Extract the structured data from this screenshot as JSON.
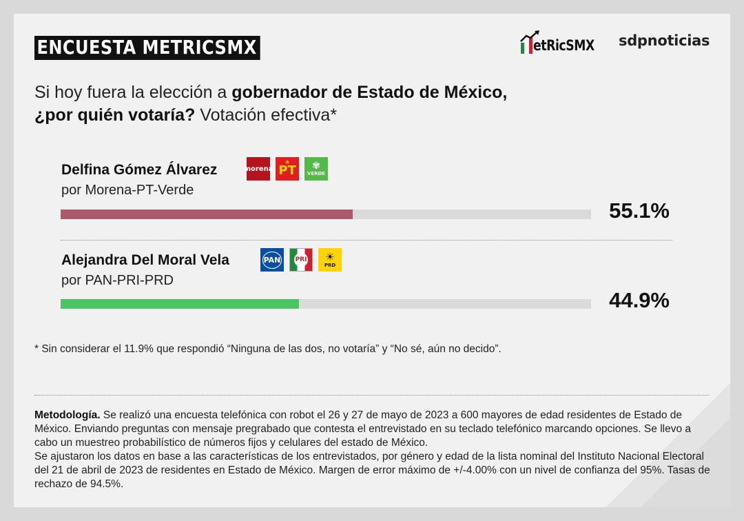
{
  "header": {
    "tag": "ENCUESTA METRICSMX",
    "logo_metrics": "METRICSMX",
    "logo_metrics_display": "etRicSMX",
    "logo_sdp": "sdpnoticias"
  },
  "question": {
    "part1": "Si hoy fuera la elección a ",
    "part1_bold": "gobernador de Estado de México,",
    "part2_bold": "¿por quién votaría?",
    "part2": " Votación efectiva*"
  },
  "chart_data": {
    "type": "bar",
    "orientation": "horizontal",
    "title": "Si hoy fuera la elección a gobernador de Estado de México, ¿por quién votaría? Votación efectiva*",
    "categories": [
      "Delfina Gómez Álvarez",
      "Alejandra Del Moral Vela"
    ],
    "subtitles": [
      "por Morena-PT-Verde",
      "por PAN-PRI-PRD"
    ],
    "values": [
      55.1,
      44.9
    ],
    "value_labels": [
      "55.1%",
      "44.9%"
    ],
    "colors": [
      "#a85b6b",
      "#4cc466"
    ],
    "xlim": [
      0,
      100
    ],
    "grid": false,
    "legend": "none"
  },
  "candidates": [
    {
      "name": "Delfina Gómez Álvarez",
      "party": "por Morena-PT-Verde",
      "pct": "55.1%",
      "logos": [
        {
          "icon": "morena-logo",
          "text": "morena",
          "bg": "#b5141f"
        },
        {
          "icon": "pt-logo",
          "text": "PT",
          "bg": "#e21d1d"
        },
        {
          "icon": "verde-logo",
          "text": "VERDE",
          "bg": "#54b948"
        }
      ]
    },
    {
      "name": "Alejandra Del Moral Vela",
      "party": "por PAN-PRI-PRD",
      "pct": "44.9%",
      "logos": [
        {
          "icon": "pan-logo",
          "text": "PAN",
          "bg": "#0a4ea2"
        },
        {
          "icon": "pri-logo",
          "text": "PRI",
          "bg": "#ffffff"
        },
        {
          "icon": "prd-logo",
          "text": "PRD",
          "bg": "#ffd400"
        }
      ]
    }
  ],
  "footnote": "* Sin considerar el 11.9% que respondió “Ninguna de las dos, no votaría” y “No sé, aún no decido”.",
  "methodology": {
    "label": "Metodología.",
    "text": " Se realizó una encuesta telefónica con robot el 26 y 27 de mayo de 2023 a 600 mayores de edad residentes de Estado de México. Enviando preguntas con mensaje pregrabado que contesta el entrevistado en su teclado telefónico marcando opciones. Se llevo a cabo un muestreo probabilístico de números fijos y celulares del estado de México.",
    "text2": "Se ajustaron los datos en base a las características de los entrevistados, por género y edad de la lista nominal del Instituto Nacional Electoral del 21 de abril de 2023 de residentes en Estado de México. Margen de error máximo de +/-4.00% con un nivel de confianza del 95%. Tasas de rechazo de 94.5%."
  }
}
